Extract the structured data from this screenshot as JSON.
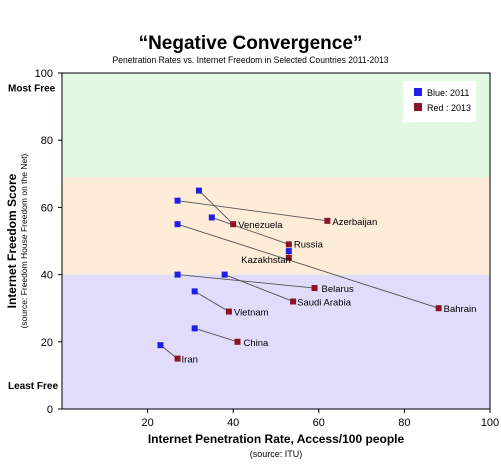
{
  "chart_data": {
    "type": "scatter",
    "title": "“Negative Convergence”",
    "subtitle": "Penetration Rates vs. Internet Freedom in Selected Countries 2011-2013",
    "xlabel": "Internet Penetration Rate, Access/100 people",
    "xlabel_note": "(source: ITU)",
    "ylabel": "Internet Freedom Score",
    "ylabel_note": "(source: Freedom House Freedom on the Net)",
    "xlim": [
      0,
      100
    ],
    "ylim": [
      0,
      100
    ],
    "x_ticks": [
      "20",
      "40",
      "60",
      "80",
      "100"
    ],
    "y_ticks": [
      "0",
      "20",
      "40",
      "60",
      "80",
      "100"
    ],
    "y_annotations": {
      "top": "Most Free",
      "bottom": "Least Free"
    },
    "bands": [
      {
        "from": 69,
        "to": 100,
        "color": "#e2f8e2"
      },
      {
        "from": 40,
        "to": 69,
        "color": "#fcecd8"
      },
      {
        "from": 0,
        "to": 40,
        "color": "#e0dcfa"
      }
    ],
    "legend": {
      "position": "top-right",
      "items": [
        {
          "label": "Blue: 2011",
          "color": "#1f1fe6"
        },
        {
          "label": "Red :  2013",
          "color": "#8b1428"
        }
      ]
    },
    "colors": {
      "blue": "#1f1fe6",
      "red": "#8b1428",
      "line": "#555555"
    },
    "series": [
      {
        "name": "Blue: 2011",
        "color": "#1f1fe6",
        "points": [
          {
            "country": "Azerbaijan",
            "x": 27,
            "y": 62
          },
          {
            "country": "Venezuela",
            "x": 32,
            "y": 65
          },
          {
            "country": "Russia",
            "x": 35,
            "y": 57
          },
          {
            "country": "Kazakhstan",
            "x": 53,
            "y": 47
          },
          {
            "country": "Bahrain",
            "x": 27,
            "y": 55
          },
          {
            "country": "Belarus",
            "x": 27,
            "y": 40
          },
          {
            "country": "Saudi Arabia",
            "x": 38,
            "y": 40
          },
          {
            "country": "Vietnam",
            "x": 31,
            "y": 35
          },
          {
            "country": "China",
            "x": 31,
            "y": 24
          },
          {
            "country": "Iran",
            "x": 23,
            "y": 19
          }
        ]
      },
      {
        "name": "Red :  2013",
        "color": "#8b1428",
        "points": [
          {
            "country": "Azerbaijan",
            "x": 62,
            "y": 56
          },
          {
            "country": "Venezuela",
            "x": 40,
            "y": 55
          },
          {
            "country": "Russia",
            "x": 53,
            "y": 49
          },
          {
            "country": "Kazakhstan",
            "x": 53,
            "y": 45
          },
          {
            "country": "Bahrain",
            "x": 88,
            "y": 30
          },
          {
            "country": "Belarus",
            "x": 59,
            "y": 36
          },
          {
            "country": "Saudi Arabia",
            "x": 54,
            "y": 32
          },
          {
            "country": "Vietnam",
            "x": 39,
            "y": 29
          },
          {
            "country": "China",
            "x": 41,
            "y": 20
          },
          {
            "country": "Iran",
            "x": 27,
            "y": 15
          }
        ]
      }
    ],
    "country_labels": [
      {
        "country": "Azerbaijan",
        "text": "Azerbaijan"
      },
      {
        "country": "Venezuela",
        "text": "Venezuela"
      },
      {
        "country": "Russia",
        "text": "Russia"
      },
      {
        "country": "Kazakhstan",
        "text": "Kazakhstan"
      },
      {
        "country": "Bahrain",
        "text": "Bahrain"
      },
      {
        "country": "Belarus",
        "text": "Belarus"
      },
      {
        "country": "Saudi Arabia",
        "text": "Saudi Arabia"
      },
      {
        "country": "Vietnam",
        "text": "Vietnam"
      },
      {
        "country": "China",
        "text": "China"
      },
      {
        "country": "Iran",
        "text": "Iran"
      }
    ]
  }
}
